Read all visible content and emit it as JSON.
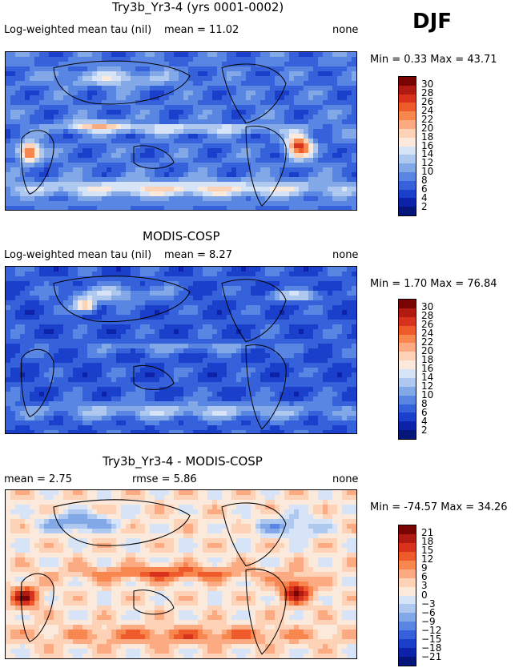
{
  "season": "DJF",
  "panels": [
    {
      "title": "Try3b_Yr3-4 (yrs 0001-0002)",
      "left_label": "Log-weighted mean tau (nil)",
      "mean_label": "mean =  11.02",
      "rmse_label": "",
      "right_label": "none",
      "minmax": "Min =   0.33 Max =  43.71",
      "colorbar": {
        "ticks": [
          "30",
          "28",
          "26",
          "24",
          "22",
          "20",
          "18",
          "16",
          "14",
          "12",
          "10",
          "8",
          "6",
          "4",
          "2"
        ],
        "colors": [
          "#7a0403",
          "#b01a10",
          "#d8311c",
          "#ef5a2a",
          "#f7874f",
          "#fbaa81",
          "#fdd2b6",
          "#fbeadb",
          "#d7e3f6",
          "#aec8ef",
          "#82a8e8",
          "#5a86e3",
          "#3562db",
          "#1a3fcb",
          "#0c22a8",
          "#061579"
        ]
      },
      "field": "model"
    },
    {
      "title": "MODIS-COSP",
      "left_label": "Log-weighted mean tau (nil)",
      "mean_label": "mean =   8.27",
      "rmse_label": "",
      "right_label": "none",
      "minmax": "Min =   1.70 Max =  76.84",
      "colorbar": {
        "ticks": [
          "30",
          "28",
          "26",
          "24",
          "22",
          "20",
          "18",
          "16",
          "14",
          "12",
          "10",
          "8",
          "6",
          "4",
          "2"
        ],
        "colors": [
          "#7a0403",
          "#b01a10",
          "#d8311c",
          "#ef5a2a",
          "#f7874f",
          "#fbaa81",
          "#fdd2b6",
          "#fbeadb",
          "#d7e3f6",
          "#aec8ef",
          "#82a8e8",
          "#5a86e3",
          "#3562db",
          "#1a3fcb",
          "#0c22a8",
          "#061579"
        ]
      },
      "field": "obs"
    },
    {
      "title": "Try3b_Yr3-4 - MODIS-COSP",
      "left_label": "mean =   2.75",
      "mean_label": "",
      "rmse_label": "rmse =   5.86",
      "right_label": "none",
      "minmax": "Min = -74.57 Max =  34.26",
      "colorbar": {
        "ticks": [
          "21",
          "18",
          "15",
          "12",
          "9",
          "6",
          "3",
          "0",
          "−3",
          "−6",
          "−9",
          "−12",
          "−15",
          "−18",
          "−21"
        ],
        "colors": [
          "#7a0403",
          "#b01a10",
          "#d8311c",
          "#ef5a2a",
          "#f7874f",
          "#fbaa81",
          "#fdd2b6",
          "#fbeadb",
          "#d7e3f6",
          "#aec8ef",
          "#82a8e8",
          "#5a86e3",
          "#3562db",
          "#1a3fcb",
          "#0c22a8",
          "#061579"
        ]
      },
      "field": "diff"
    }
  ],
  "chart_data": [
    {
      "type": "heatmap",
      "title": "Try3b_Yr3-4 (yrs 0001-0002)",
      "zlabel": "Log-weighted mean tau (nil)",
      "mean": 11.02,
      "min": 0.33,
      "max": 43.71,
      "levels": [
        2,
        4,
        6,
        8,
        10,
        12,
        14,
        16,
        18,
        20,
        22,
        24,
        26,
        28,
        30
      ]
    },
    {
      "type": "heatmap",
      "title": "MODIS-COSP",
      "zlabel": "Log-weighted mean tau (nil)",
      "mean": 8.27,
      "min": 1.7,
      "max": 76.84,
      "levels": [
        2,
        4,
        6,
        8,
        10,
        12,
        14,
        16,
        18,
        20,
        22,
        24,
        26,
        28,
        30
      ]
    },
    {
      "type": "heatmap",
      "title": "Try3b_Yr3-4 - MODIS-COSP",
      "mean": 2.75,
      "rmse": 5.86,
      "min": -74.57,
      "max": 34.26,
      "levels": [
        -21,
        -18,
        -15,
        -12,
        -9,
        -6,
        -3,
        0,
        3,
        6,
        9,
        12,
        15,
        18,
        21
      ]
    }
  ]
}
